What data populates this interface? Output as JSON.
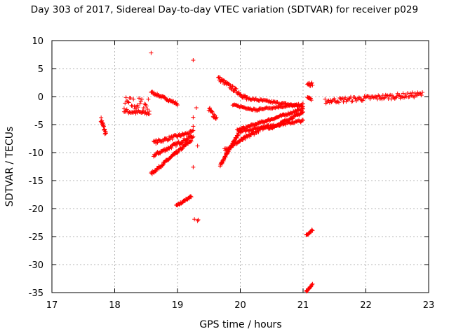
{
  "chart_data": {
    "type": "scatter",
    "title": "Day 303 of 2017, Sidereal Day-to-day VTEC variation (SDTVAR) for receiver p029",
    "xlabel": "GPS time / hours",
    "ylabel": "SDTVAR / TECUs",
    "xlim": [
      17,
      23
    ],
    "ylim": [
      -35,
      10
    ],
    "x_ticks": [
      "17",
      "18",
      "19",
      "20",
      "21",
      "22",
      "23"
    ],
    "y_ticks": [
      "10",
      "5",
      "0",
      "-5",
      "-10",
      "-15",
      "-20",
      "-25",
      "-30",
      "-35"
    ],
    "grid": true,
    "marker": "+",
    "color": "#ff0000",
    "segments": [
      {
        "x0": 17.78,
        "x1": 17.86,
        "y0": -4.0,
        "y1": -6.8,
        "spread": 0.9
      },
      {
        "x0": 18.15,
        "x1": 18.55,
        "y0": -1.2,
        "y1": -1.5,
        "spread": 2.5
      },
      {
        "x0": 18.15,
        "x1": 18.55,
        "y0": -2.6,
        "y1": -3.0,
        "spread": 0.8
      },
      {
        "x0": 18.58,
        "x1": 19.0,
        "y0": 0.8,
        "y1": -1.3,
        "spread": 0.4
      },
      {
        "x0": 18.62,
        "x1": 19.25,
        "y0": -8.2,
        "y1": -6.3,
        "spread": 0.6
      },
      {
        "x0": 18.62,
        "x1": 19.25,
        "y0": -10.5,
        "y1": -7.0,
        "spread": 0.6
      },
      {
        "x0": 18.58,
        "x1": 19.22,
        "y0": -13.8,
        "y1": -7.8,
        "spread": 0.5
      },
      {
        "x0": 18.98,
        "x1": 19.22,
        "y0": -19.5,
        "y1": -17.8,
        "spread": 0.3
      },
      {
        "x0": 19.5,
        "x1": 19.62,
        "y0": -2.3,
        "y1": -3.8,
        "spread": 1.0
      },
      {
        "x0": 19.65,
        "x1": 20.1,
        "y0": 3.3,
        "y1": -0.3,
        "spread": 0.8
      },
      {
        "x0": 19.88,
        "x1": 20.3,
        "y0": -1.5,
        "y1": -2.5,
        "spread": 0.3
      },
      {
        "x0": 20.1,
        "x1": 21.0,
        "y0": -0.3,
        "y1": -1.8,
        "spread": 0.4
      },
      {
        "x0": 20.3,
        "x1": 21.0,
        "y0": -2.2,
        "y1": -1.4,
        "spread": 0.3
      },
      {
        "x0": 19.95,
        "x1": 21.0,
        "y0": -6.0,
        "y1": -2.2,
        "spread": 0.4
      },
      {
        "x0": 19.68,
        "x1": 20.0,
        "y0": -12.3,
        "y1": -6.0,
        "spread": 0.5
      },
      {
        "x0": 19.75,
        "x1": 20.45,
        "y0": -9.5,
        "y1": -5.0,
        "spread": 0.6
      },
      {
        "x0": 20.0,
        "x1": 21.0,
        "y0": -6.2,
        "y1": -4.3,
        "spread": 0.4
      },
      {
        "x0": 20.45,
        "x1": 21.0,
        "y0": -5.8,
        "y1": -2.8,
        "spread": 0.4
      },
      {
        "x0": 21.07,
        "x1": 21.15,
        "y0": 2.2,
        "y1": 2.2,
        "spread": 0.6
      },
      {
        "x0": 21.07,
        "x1": 21.13,
        "y0": 0.0,
        "y1": -0.5,
        "spread": 0.3
      },
      {
        "x0": 21.05,
        "x1": 21.15,
        "y0": -24.8,
        "y1": -23.8,
        "spread": 0.3
      },
      {
        "x0": 21.05,
        "x1": 21.15,
        "y0": -34.8,
        "y1": -33.6,
        "spread": 0.3
      },
      {
        "x0": 21.35,
        "x1": 22.9,
        "y0": -0.8,
        "y1": 0.4,
        "spread": 0.9
      }
    ],
    "isolated_points": [
      {
        "x": 18.58,
        "y": 7.8
      },
      {
        "x": 19.25,
        "y": 6.5
      },
      {
        "x": 19.25,
        "y": -3.7
      },
      {
        "x": 19.3,
        "y": -2.0
      },
      {
        "x": 19.25,
        "y": -5.3
      },
      {
        "x": 19.32,
        "y": -8.8
      },
      {
        "x": 19.25,
        "y": -12.6
      },
      {
        "x": 19.27,
        "y": -21.9
      },
      {
        "x": 19.32,
        "y": -22.2
      },
      {
        "x": 19.33,
        "y": -22.0
      }
    ]
  }
}
